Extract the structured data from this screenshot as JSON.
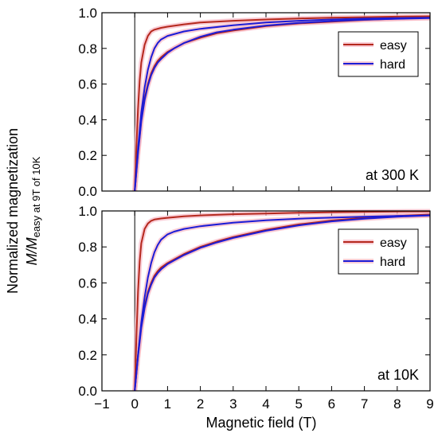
{
  "chart_data": {
    "type": "line",
    "xlabel": "Magnetic field (T)",
    "ylabel": "Normalized magnetization",
    "ylabel2_main": "M/M",
    "ylabel2_sub": "easy at 9T of 10K",
    "xlim": [
      -1,
      9
    ],
    "xticks": [
      "−1",
      "0",
      "1",
      "2",
      "3",
      "4",
      "5",
      "6",
      "7",
      "8",
      "9"
    ],
    "yticks": [
      "0.0",
      "0.2",
      "0.4",
      "0.6",
      "0.8",
      "1.0"
    ],
    "colors": {
      "easy": "#b5281d",
      "hard": "#1c1cd6",
      "halo": "#f6b8c4"
    },
    "panels": [
      {
        "annotation": "at 300 K",
        "ylim": [
          0,
          1
        ],
        "legend_position": "top-right",
        "series": [
          {
            "name": "easy",
            "x": [
              0,
              0.05,
              0.1,
              0.15,
              0.2,
              0.3,
              0.4,
              0.5,
              0.6,
              0.8,
              1.0,
              1.5,
              2,
              3,
              4,
              5,
              6,
              7,
              8,
              9
            ],
            "y": [
              0,
              0.25,
              0.46,
              0.62,
              0.72,
              0.82,
              0.87,
              0.895,
              0.905,
              0.915,
              0.922,
              0.935,
              0.945,
              0.955,
              0.962,
              0.968,
              0.972,
              0.975,
              0.978,
              0.98
            ]
          },
          {
            "name": "easy",
            "x": [
              0,
              0.1,
              0.2,
              0.3,
              0.4,
              0.5,
              0.6,
              0.7,
              0.8,
              1.0,
              1.2,
              1.5,
              2,
              2.5,
              3,
              4,
              5,
              6,
              7,
              8,
              9
            ],
            "y": [
              0,
              0.22,
              0.4,
              0.52,
              0.6,
              0.66,
              0.7,
              0.73,
              0.75,
              0.78,
              0.8,
              0.83,
              0.86,
              0.885,
              0.9,
              0.925,
              0.94,
              0.95,
              0.96,
              0.967,
              0.972
            ]
          },
          {
            "name": "hard",
            "x": [
              0,
              0.1,
              0.2,
              0.3,
              0.4,
              0.5,
              0.6,
              0.7,
              0.8,
              1.0,
              1.2,
              1.5,
              2,
              2.5,
              3,
              4,
              5,
              6,
              7,
              8,
              9
            ],
            "y": [
              0,
              0.21,
              0.39,
              0.51,
              0.59,
              0.65,
              0.69,
              0.72,
              0.74,
              0.775,
              0.8,
              0.83,
              0.865,
              0.89,
              0.905,
              0.928,
              0.943,
              0.953,
              0.961,
              0.966,
              0.97
            ]
          },
          {
            "name": "hard",
            "x": [
              0,
              0.1,
              0.2,
              0.3,
              0.4,
              0.5,
              0.6,
              0.7,
              0.8,
              1.0,
              1.2,
              1.5,
              2,
              3,
              4,
              5,
              6,
              7,
              8,
              9
            ],
            "y": [
              0,
              0.24,
              0.44,
              0.58,
              0.68,
              0.75,
              0.8,
              0.83,
              0.85,
              0.87,
              0.88,
              0.895,
              0.91,
              0.93,
              0.945,
              0.955,
              0.962,
              0.967,
              0.97,
              0.972
            ]
          }
        ]
      },
      {
        "annotation": "at 10K",
        "ylim": [
          0,
          1
        ],
        "legend_position": "middle-right",
        "series": [
          {
            "name": "easy",
            "x": [
              0,
              0.05,
              0.1,
              0.15,
              0.2,
              0.3,
              0.4,
              0.5,
              0.6,
              0.8,
              1.0,
              1.5,
              2,
              3,
              4,
              5,
              6,
              7,
              8,
              9
            ],
            "y": [
              0,
              0.3,
              0.55,
              0.72,
              0.82,
              0.9,
              0.93,
              0.945,
              0.952,
              0.958,
              0.962,
              0.97,
              0.975,
              0.982,
              0.986,
              0.99,
              0.993,
              0.995,
              0.997,
              0.998
            ]
          },
          {
            "name": "easy",
            "x": [
              0,
              0.1,
              0.2,
              0.3,
              0.4,
              0.5,
              0.6,
              0.7,
              0.8,
              1.0,
              1.2,
              1.5,
              2,
              2.5,
              3,
              4,
              5,
              6,
              7,
              8,
              9
            ],
            "y": [
              0,
              0.2,
              0.36,
              0.47,
              0.55,
              0.6,
              0.64,
              0.665,
              0.685,
              0.71,
              0.73,
              0.76,
              0.8,
              0.83,
              0.855,
              0.895,
              0.925,
              0.947,
              0.962,
              0.972,
              0.98
            ]
          },
          {
            "name": "hard",
            "x": [
              0,
              0.1,
              0.2,
              0.3,
              0.4,
              0.5,
              0.6,
              0.7,
              0.8,
              1.0,
              1.2,
              1.5,
              2,
              2.5,
              3,
              4,
              5,
              6,
              7,
              8,
              9
            ],
            "y": [
              0,
              0.19,
              0.35,
              0.46,
              0.54,
              0.59,
              0.63,
              0.655,
              0.675,
              0.705,
              0.725,
              0.755,
              0.795,
              0.825,
              0.85,
              0.89,
              0.92,
              0.942,
              0.957,
              0.968,
              0.975
            ]
          },
          {
            "name": "hard",
            "x": [
              0,
              0.1,
              0.2,
              0.3,
              0.4,
              0.5,
              0.6,
              0.7,
              0.8,
              1.0,
              1.2,
              1.5,
              2,
              3,
              4,
              5,
              6,
              7,
              8,
              9
            ],
            "y": [
              0,
              0.2,
              0.38,
              0.52,
              0.63,
              0.71,
              0.77,
              0.81,
              0.84,
              0.87,
              0.885,
              0.9,
              0.915,
              0.935,
              0.948,
              0.957,
              0.963,
              0.968,
              0.972,
              0.975
            ]
          }
        ]
      }
    ],
    "legend": [
      {
        "name": "easy",
        "color": "#b5281d"
      },
      {
        "name": "hard",
        "color": "#1c1cd6"
      }
    ]
  }
}
